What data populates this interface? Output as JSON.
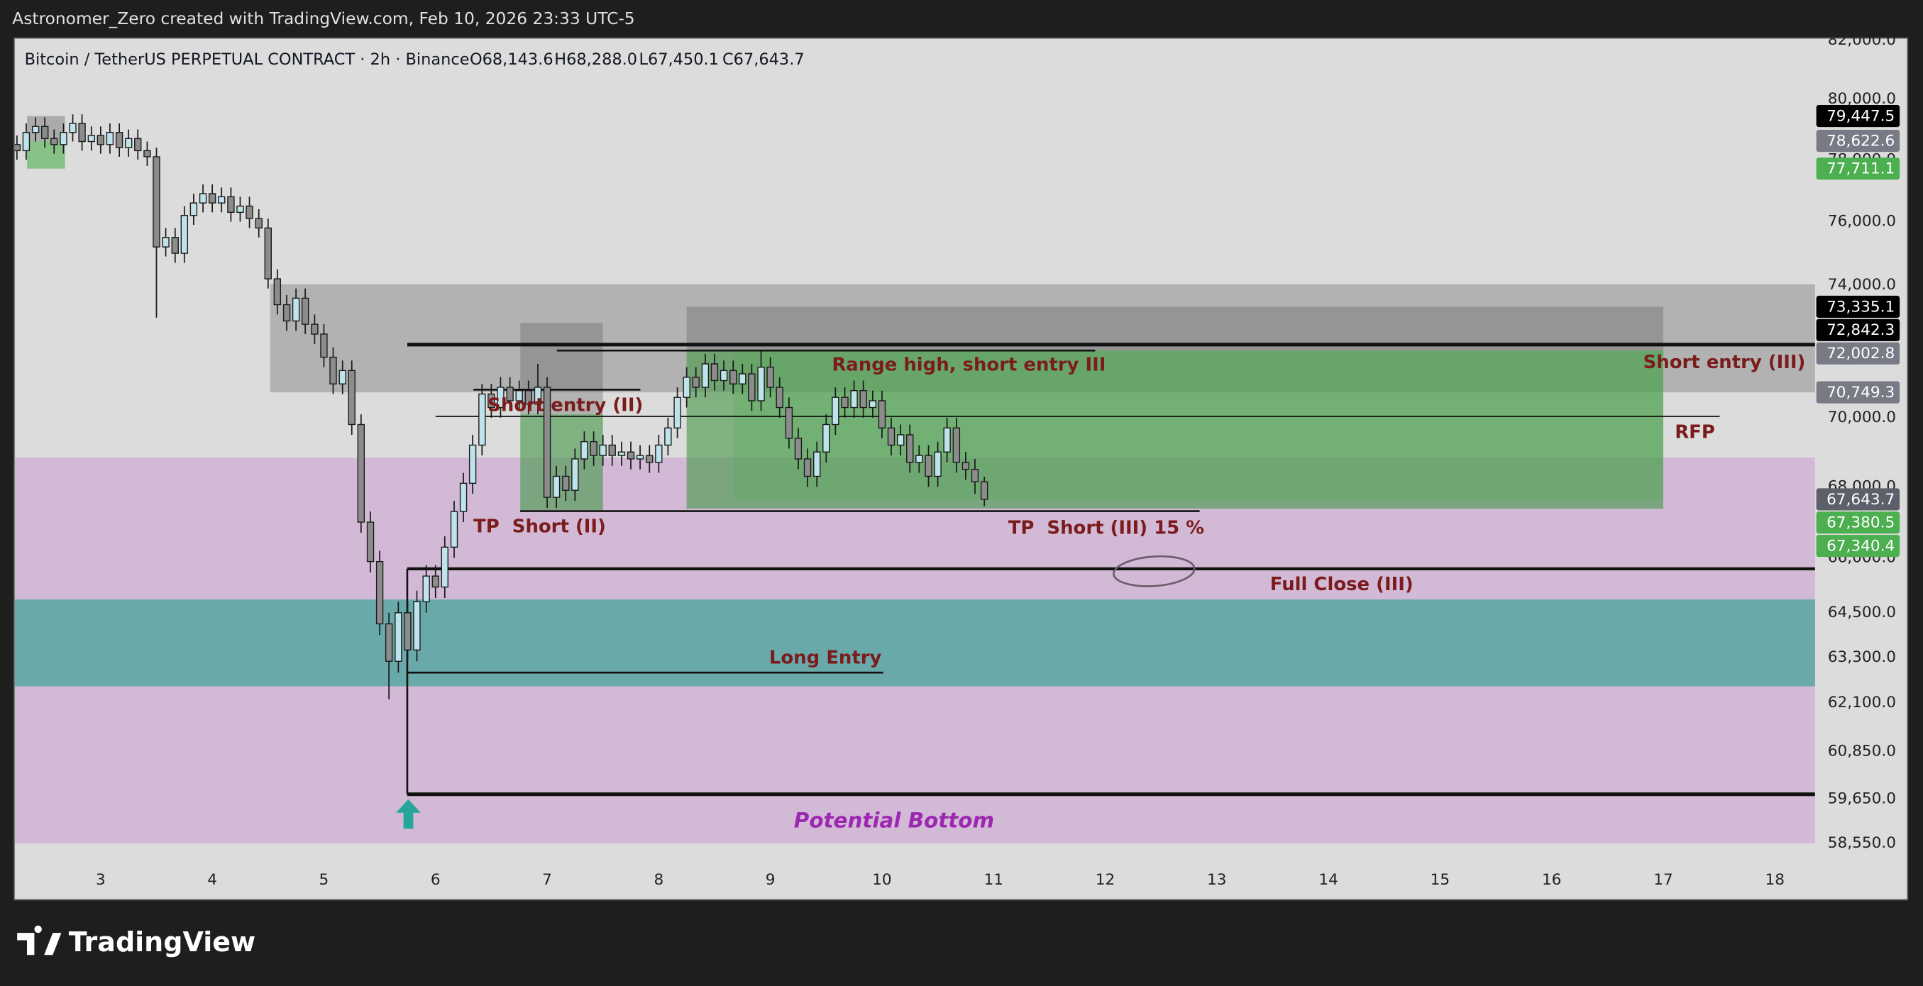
{
  "header": {
    "attribution": "Astronomer_Zero created with TradingView.com, Feb 10, 2026 23:33 UTC-5"
  },
  "footer": {
    "brand": "TradingView"
  },
  "chart_data": {
    "type": "candlestick",
    "title": "Bitcoin / TetherUS PERPETUAL CONTRACT · 2h · Binance",
    "ohlc_labels": [
      "O68,143.6",
      "H68,288.0",
      "L67,450.1",
      "C67,643.7"
    ],
    "log_scale": true,
    "grid": false,
    "up_color": "#bfe3ea",
    "down_color": "#8c8c8c",
    "candle_outline": "#1a1a1a",
    "line_color": "#111111",
    "xlim": [
      2.23,
      18.36
    ],
    "xticks": [
      3,
      4,
      5,
      6,
      7,
      8,
      9,
      10,
      11,
      12,
      13,
      14,
      15,
      16,
      17,
      18
    ],
    "ylim": [
      58040,
      82090
    ],
    "yticks": [
      {
        "value": 82000,
        "label": "82,000.0"
      },
      {
        "value": 80000,
        "label": "80,000.0"
      },
      {
        "value": 78000,
        "label": "78,000.0"
      },
      {
        "value": 76000,
        "label": "76,000.0"
      },
      {
        "value": 74000,
        "label": "74,000.0"
      },
      {
        "value": 72000,
        "label": "72,000.0"
      },
      {
        "value": 70000,
        "label": "70,000.0"
      },
      {
        "value": 68000,
        "label": "68,000.0"
      },
      {
        "value": 66000,
        "label": "66,000.0"
      },
      {
        "value": 64500,
        "label": "64,500.0"
      },
      {
        "value": 63300,
        "label": "63,300.0"
      },
      {
        "value": 62100,
        "label": "62,100.0"
      },
      {
        "value": 60850,
        "label": "60,850.0"
      },
      {
        "value": 59650,
        "label": "59,650.0"
      },
      {
        "value": 58550,
        "label": "58,550.0"
      }
    ],
    "price_labels": [
      {
        "value": 79447.5,
        "label": "79,447.5",
        "color": "#000000"
      },
      {
        "value": 78622.6,
        "label": "78,622.6",
        "color": "#787b86"
      },
      {
        "value": 77711.1,
        "label": "77,711.1",
        "color": "#4caf50"
      },
      {
        "value": 73335.1,
        "label": "73,335.1",
        "color": "#000000"
      },
      {
        "value": 72842.3,
        "label": "72,842.3",
        "color": "#000000"
      },
      {
        "value": 72002.8,
        "label": "72,002.8",
        "color": "#787b86"
      },
      {
        "value": 70749.3,
        "label": "70,749.3",
        "color": "#787b86"
      },
      {
        "value": 67643.7,
        "label": "67,643.7",
        "color": "#5d606b"
      },
      {
        "value": 67380.5,
        "label": "67,380.5",
        "color": "#4caf50"
      },
      {
        "value": 67340.4,
        "label": "67,340.4",
        "color": "#4caf50"
      }
    ],
    "zones": [
      {
        "x": [
          2.23,
          18.36
        ],
        "y": [
          58550,
          68840
        ],
        "color": "#d2b9d5"
      },
      {
        "x": [
          2.23,
          18.36
        ],
        "y": [
          62540,
          64860
        ],
        "color": "#6aa9a9"
      },
      {
        "x": [
          4.52,
          18.36
        ],
        "y": [
          70749.3,
          74030
        ],
        "color": "rgba(110,110,110,0.38)"
      },
      {
        "x": [
          8.25,
          17.0
        ],
        "y": [
          67380.5,
          73335.1
        ],
        "color": "rgba(90,90,90,0.32)"
      },
      {
        "x": [
          6.76,
          7.5
        ],
        "y": [
          67340.4,
          72842.3
        ],
        "color": "rgba(90,90,90,0.32)"
      },
      {
        "x": [
          8.25,
          17.0
        ],
        "y": [
          67380.5,
          72002.8
        ],
        "color": "rgba(76,175,80,0.5)"
      },
      {
        "x": [
          8.67,
          17.0
        ],
        "y": [
          67643.7,
          72002.8
        ],
        "color": "rgba(76,175,80,0.25)"
      },
      {
        "x": [
          6.76,
          7.5
        ],
        "y": [
          67340.4,
          70100
        ],
        "color": "rgba(76,175,80,0.5)"
      },
      {
        "x": [
          2.34,
          2.68
        ],
        "y": [
          78622.6,
          79447.5
        ],
        "color": "rgba(110,110,110,0.45)"
      },
      {
        "x": [
          2.34,
          2.68
        ],
        "y": [
          77711.1,
          78622.6
        ],
        "color": "rgba(76,175,80,0.6)"
      }
    ],
    "lines": [
      {
        "x": [
          5.747,
          18.36
        ],
        "y": 72180,
        "width": 3
      },
      {
        "x": [
          7.088,
          11.91
        ],
        "y": 72000,
        "width": 1.5
      },
      {
        "x": [
          6.34,
          7.835
        ],
        "y": 70830,
        "width": 1.5
      },
      {
        "x": [
          6.0,
          17.505
        ],
        "y": 70040,
        "width": 1
      },
      {
        "x": [
          6.758,
          12.846
        ],
        "y": 67310,
        "width": 1.5
      },
      {
        "x": [
          5.747,
          18.36
        ],
        "y": 65700,
        "width": 2.5
      },
      {
        "x": [
          5.747,
          10.011
        ],
        "y": 62900,
        "width": 1.5
      },
      {
        "x": [
          5.747,
          18.36
        ],
        "y": 59770,
        "width": 3
      }
    ],
    "vlines": [
      {
        "x": 5.747,
        "y": [
          59770,
          65700
        ],
        "width": 1.5
      }
    ],
    "annotations": [
      "Range high, short entry III",
      "Short entry (II)",
      "TP  Short (II)",
      "TP  Short (III) 15 %",
      "Full Close (III)",
      "Long Entry",
      "Potential Bottom",
      "Short entry (III)",
      "RFP"
    ],
    "x": [
      2.25,
      2.333,
      2.417,
      2.5,
      2.583,
      2.667,
      2.75,
      2.833,
      2.917,
      3,
      3.083,
      3.167,
      3.25,
      3.333,
      3.417,
      3.5,
      3.583,
      3.667,
      3.75,
      3.833,
      3.917,
      4,
      4.083,
      4.167,
      4.25,
      4.333,
      4.417,
      4.5,
      4.583,
      4.667,
      4.75,
      4.833,
      4.917,
      5,
      5.083,
      5.167,
      5.25,
      5.333,
      5.417,
      5.5,
      5.583,
      5.667,
      5.75,
      5.833,
      5.917,
      6,
      6.083,
      6.167,
      6.25,
      6.333,
      6.417,
      6.5,
      6.583,
      6.667,
      6.75,
      6.833,
      6.917,
      7,
      7.083,
      7.167,
      7.25,
      7.333,
      7.417,
      7.5,
      7.583,
      7.667,
      7.75,
      7.833,
      7.917,
      8,
      8.083,
      8.167,
      8.25,
      8.333,
      8.417,
      8.5,
      8.583,
      8.667,
      8.75,
      8.833,
      8.917,
      9,
      9.083,
      9.167,
      9.25,
      9.333,
      9.417,
      9.5,
      9.583,
      9.667,
      9.75,
      9.833,
      9.917,
      10,
      10.083,
      10.167,
      10.25,
      10.333,
      10.417,
      10.5,
      10.583,
      10.667,
      10.75,
      10.833,
      10.917
    ],
    "open": [
      78500,
      78300,
      78900,
      79100,
      78700,
      78500,
      78900,
      79200,
      78600,
      78800,
      78500,
      78900,
      78400,
      78700,
      78300,
      78100,
      75200,
      75500,
      75000,
      76200,
      76600,
      76900,
      76600,
      76800,
      76300,
      76500,
      76100,
      75800,
      74200,
      73400,
      72900,
      73600,
      72800,
      72500,
      71800,
      71000,
      71400,
      69800,
      67000,
      65900,
      64200,
      63200,
      64500,
      63500,
      64800,
      65500,
      65200,
      66300,
      67300,
      68100,
      69200,
      70700,
      70300,
      70900,
      70500,
      70800,
      70400,
      70900,
      67700,
      68300,
      67900,
      68800,
      69300,
      68900,
      69200,
      68900,
      69000,
      68800,
      68900,
      68700,
      69200,
      69700,
      70600,
      71200,
      70900,
      71600,
      71100,
      71400,
      71000,
      71300,
      70500,
      71500,
      70900,
      70300,
      69400,
      68800,
      68300,
      69000,
      69800,
      70600,
      70300,
      70800,
      70300,
      70500,
      69700,
      69200,
      69500,
      68700,
      68900,
      68300,
      69000,
      69700,
      68700,
      68500,
      68143.6
    ],
    "high": [
      78800,
      79200,
      79400,
      79400,
      79000,
      79200,
      79500,
      79500,
      79100,
      79100,
      79200,
      79200,
      79000,
      79000,
      78600,
      78400,
      75800,
      75800,
      76500,
      76900,
      77200,
      77200,
      77100,
      77100,
      76800,
      76800,
      76400,
      76100,
      74500,
      73700,
      73900,
      73900,
      73100,
      72800,
      72100,
      71700,
      71700,
      70100,
      67300,
      66200,
      64500,
      64800,
      64800,
      65100,
      65800,
      65800,
      66600,
      67600,
      68400,
      69500,
      71000,
      71000,
      71200,
      71200,
      71100,
      71100,
      71600,
      71200,
      68600,
      68600,
      69100,
      69600,
      69600,
      69500,
      69500,
      69300,
      69300,
      69200,
      69200,
      69500,
      70000,
      70900,
      71500,
      71500,
      71900,
      71900,
      71700,
      71700,
      71600,
      71600,
      72000,
      71800,
      71200,
      70600,
      69700,
      69100,
      69300,
      70100,
      70900,
      70900,
      71100,
      71100,
      70800,
      70800,
      70000,
      69800,
      69800,
      69200,
      69200,
      69300,
      70000,
      70000,
      69000,
      68800,
      68288
    ],
    "low": [
      78000,
      78000,
      78600,
      78400,
      78200,
      78200,
      78600,
      78300,
      78300,
      78200,
      78200,
      78100,
      78100,
      78000,
      77800,
      73000,
      74900,
      74700,
      74700,
      75900,
      76300,
      76300,
      76300,
      76000,
      76000,
      75800,
      75500,
      73900,
      73100,
      72600,
      72600,
      72500,
      72200,
      71500,
      70700,
      70700,
      69500,
      66700,
      65600,
      63900,
      62200,
      62900,
      63200,
      63200,
      64500,
      64900,
      64900,
      66000,
      67000,
      67800,
      68900,
      70000,
      70000,
      70200,
      70200,
      70100,
      70100,
      67400,
      67400,
      67600,
      67600,
      68500,
      68600,
      68600,
      68600,
      68600,
      68500,
      68500,
      68400,
      68400,
      68900,
      69400,
      70300,
      70600,
      70600,
      70800,
      70800,
      70700,
      70700,
      70200,
      70200,
      70600,
      70000,
      69100,
      68500,
      68000,
      68000,
      68700,
      69500,
      70000,
      70000,
      70000,
      70000,
      69400,
      68900,
      68900,
      68400,
      68400,
      68000,
      68000,
      68700,
      68400,
      68200,
      67800,
      67450.1
    ],
    "close": [
      78300,
      78900,
      79100,
      78700,
      78500,
      78900,
      79200,
      78600,
      78800,
      78500,
      78900,
      78400,
      78700,
      78300,
      78100,
      75200,
      75500,
      75000,
      76200,
      76600,
      76900,
      76600,
      76800,
      76300,
      76500,
      76100,
      75800,
      74200,
      73400,
      72900,
      73600,
      72800,
      72500,
      71800,
      71000,
      71400,
      69800,
      67000,
      65900,
      64200,
      63200,
      64500,
      63500,
      64800,
      65500,
      65200,
      66300,
      67300,
      68100,
      69200,
      70700,
      70300,
      70900,
      70500,
      70800,
      70400,
      70900,
      67700,
      68300,
      67900,
      68800,
      69300,
      68900,
      69200,
      68900,
      69000,
      68800,
      68900,
      68700,
      69200,
      69700,
      70600,
      71200,
      70900,
      71600,
      71100,
      71400,
      71000,
      71300,
      70500,
      71500,
      70900,
      70300,
      69400,
      68800,
      68300,
      69000,
      69800,
      70600,
      70300,
      70800,
      70300,
      70500,
      69700,
      69200,
      69500,
      68700,
      68900,
      68300,
      69000,
      69700,
      68700,
      68500,
      68143.6,
      67643.7
    ]
  }
}
